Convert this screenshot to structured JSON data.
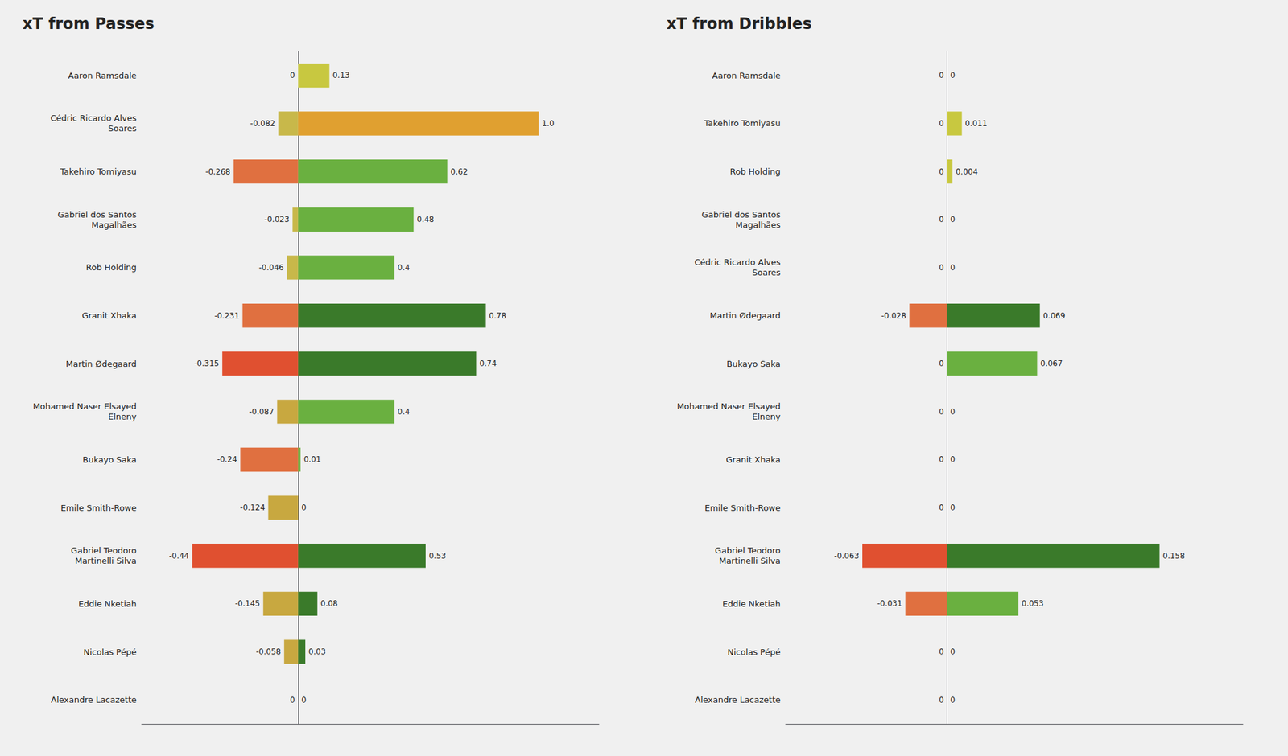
{
  "chart_data": [
    {
      "type": "bar",
      "orientation": "horizontal",
      "title": "xT from Passes",
      "categories": [
        "Aaron Ramsdale",
        "Cédric Ricardo Alves\nSoares",
        "Takehiro Tomiyasu",
        "Gabriel dos Santos\nMagalhães",
        "Rob Holding",
        "Granit Xhaka",
        "Martin Ødegaard",
        "Mohamed Naser Elsayed\nElneny",
        "Bukayo Saka",
        "Emile Smith-Rowe",
        "Gabriel Teodoro\nMartinelli Silva",
        "Eddie Nketiah",
        "Nicolas Pépé",
        "Alexandre Lacazette"
      ],
      "series": [
        {
          "values": [
            0,
            -0.082,
            -0.268,
            -0.023,
            -0.046,
            -0.231,
            -0.315,
            -0.087,
            -0.24,
            -0.124,
            -0.44,
            -0.145,
            -0.058,
            0
          ],
          "value_labels": [
            "0",
            "-0.082",
            "-0.268",
            "-0.023",
            "-0.046",
            "-0.231",
            "-0.315",
            "-0.087",
            "-0.24",
            "-0.124",
            "-0.44",
            "-0.145",
            "-0.058",
            "0"
          ],
          "colors": [
            "#c8b84a",
            "#c8b84a",
            "#e07040",
            "#c8b84a",
            "#c8b84a",
            "#e07040",
            "#e05030",
            "#c8a840",
            "#e07040",
            "#c8a840",
            "#e05030",
            "#c8a840",
            "#c8a840",
            "#c8b84a"
          ]
        },
        {
          "values": [
            0.13,
            1.0,
            0.62,
            0.48,
            0.4,
            0.78,
            0.74,
            0.4,
            0.01,
            0,
            0.53,
            0.08,
            0.03,
            0
          ],
          "value_labels": [
            "0.13",
            "1.0",
            "0.62",
            "0.48",
            "0.4",
            "0.78",
            "0.74",
            "0.4",
            "0.01",
            "0",
            "0.53",
            "0.08",
            "0.03",
            "0"
          ],
          "colors": [
            "#c8c840",
            "#e0a030",
            "#6ab040",
            "#6ab040",
            "#6ab040",
            "#3a7a2a",
            "#3a7a2a",
            "#6ab040",
            "#6ab040",
            "#6ab040",
            "#3a7a2a",
            "#3a7a2a",
            "#3a7a2a",
            "#3a7a2a"
          ]
        }
      ],
      "xlim": [
        -0.65,
        1.25
      ],
      "tick_labels": "y",
      "grid": false,
      "data_labels": true
    },
    {
      "type": "bar",
      "orientation": "horizontal",
      "title": "xT from Dribbles",
      "categories": [
        "Aaron Ramsdale",
        "Takehiro Tomiyasu",
        "Rob Holding",
        "Gabriel dos Santos\nMagalhães",
        "Cédric Ricardo Alves\nSoares",
        "Martin Ødegaard",
        "Bukayo Saka",
        "Mohamed Naser Elsayed\nElneny",
        "Granit Xhaka",
        "Emile Smith-Rowe",
        "Gabriel Teodoro\nMartinelli Silva",
        "Eddie Nketiah",
        "Nicolas Pépé",
        "Alexandre Lacazette"
      ],
      "series": [
        {
          "values": [
            0,
            0,
            0,
            0,
            0,
            -0.028,
            0,
            0,
            0,
            0,
            -0.063,
            -0.031,
            0,
            0
          ],
          "value_labels": [
            "0",
            "0",
            "0",
            "0",
            "0",
            "-0.028",
            "0",
            "0",
            "0",
            "0",
            "-0.063",
            "-0.031",
            "0",
            "0"
          ],
          "colors": [
            "#c8b84a",
            "#c8b84a",
            "#c8b84a",
            "#c8b84a",
            "#c8b84a",
            "#e07040",
            "#c8b84a",
            "#c8b84a",
            "#c8b84a",
            "#c8b84a",
            "#e05030",
            "#e07040",
            "#c8b84a",
            "#c8b84a"
          ]
        },
        {
          "values": [
            0,
            0.011,
            0.004,
            0,
            0,
            0.069,
            0.067,
            0,
            0,
            0,
            0.158,
            0.053,
            0,
            0
          ],
          "value_labels": [
            "0",
            "0.011",
            "0.004",
            "0",
            "0",
            "0.069",
            "0.067",
            "0",
            "0",
            "0",
            "0.158",
            "0.053",
            "0",
            "0"
          ],
          "colors": [
            "#c8c840",
            "#c8c840",
            "#c8c840",
            "#c8c840",
            "#c8c840",
            "#3a7a2a",
            "#6ab040",
            "#c8c840",
            "#c8c840",
            "#c8c840",
            "#3a7a2a",
            "#6ab040",
            "#c8c840",
            "#c8c840"
          ]
        }
      ],
      "xlim": [
        -0.12,
        0.22
      ],
      "tick_labels": "y",
      "grid": false,
      "data_labels": true
    }
  ]
}
